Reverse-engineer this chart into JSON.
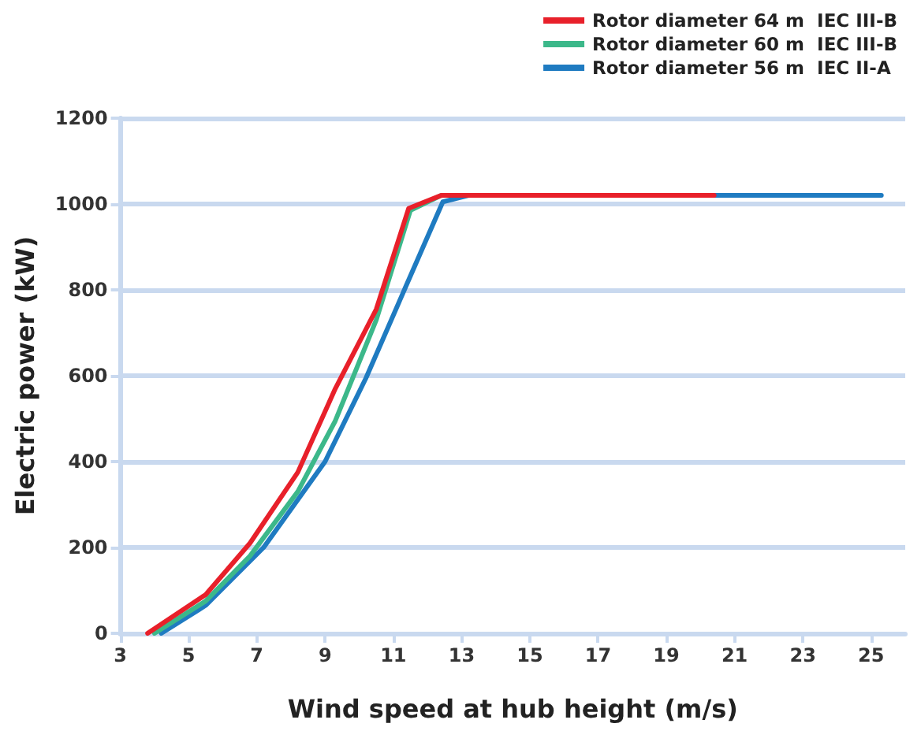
{
  "chart_data": {
    "type": "line",
    "xlabel": "Wind speed at hub height (m/s)",
    "ylabel": "Electric power (kW)",
    "xlim": [
      3,
      26
    ],
    "xticks": [
      3,
      5,
      7,
      9,
      11,
      13,
      15,
      17,
      19,
      21,
      23,
      25
    ],
    "ylim": [
      0,
      1200
    ],
    "yticks": [
      0,
      200,
      400,
      600,
      800,
      1000,
      1200
    ],
    "grid": "y",
    "legend": "top right",
    "marker": "none",
    "line_style": "solid",
    "series": [
      {
        "name": "Rotor diameter 64 m  IEC III-B",
        "color": "#e8202a",
        "x": [
          3.8,
          5.5,
          6.8,
          8.2,
          9.3,
          10.5,
          11.45,
          12.4,
          20.4
        ],
        "values": [
          0,
          90,
          210,
          375,
          570,
          755,
          990,
          1020,
          1020
        ]
      },
      {
        "name": "Rotor diameter 60 m  IEC III-B",
        "color": "#3cb88a",
        "x": [
          4,
          5.5,
          6.8,
          8.2,
          9.3,
          10.5,
          11.5,
          12.4,
          13
        ],
        "values": [
          0,
          75,
          180,
          330,
          495,
          730,
          985,
          1020,
          1020
        ]
      },
      {
        "name": "Rotor diameter 56 m  IEC II-A",
        "color": "#1f7bc1",
        "x": [
          4.2,
          5.5,
          7.2,
          9,
          10.2,
          11.35,
          12.45,
          13.2,
          25.3
        ],
        "values": [
          0,
          65,
          200,
          400,
          595,
          805,
          1005,
          1020,
          1020
        ]
      }
    ]
  }
}
